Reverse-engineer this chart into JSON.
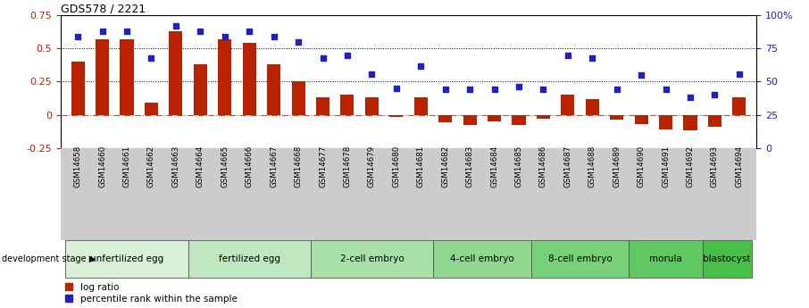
{
  "title": "GDS578 / 2221",
  "samples": [
    "GSM14658",
    "GSM14660",
    "GSM14661",
    "GSM14662",
    "GSM14663",
    "GSM14664",
    "GSM14665",
    "GSM14666",
    "GSM14667",
    "GSM14668",
    "GSM14677",
    "GSM14678",
    "GSM14679",
    "GSM14680",
    "GSM14681",
    "GSM14682",
    "GSM14683",
    "GSM14684",
    "GSM14685",
    "GSM14686",
    "GSM14687",
    "GSM14688",
    "GSM14689",
    "GSM14690",
    "GSM14691",
    "GSM14692",
    "GSM14693",
    "GSM14694"
  ],
  "log_ratio": [
    0.4,
    0.57,
    0.57,
    0.09,
    0.63,
    0.38,
    0.57,
    0.54,
    0.38,
    0.25,
    0.13,
    0.15,
    0.13,
    -0.02,
    0.13,
    -0.06,
    -0.08,
    -0.05,
    -0.08,
    -0.03,
    0.15,
    0.12,
    -0.04,
    -0.07,
    -0.11,
    -0.12,
    -0.09,
    0.13
  ],
  "percentile_rank": [
    0.84,
    0.88,
    0.88,
    0.68,
    0.92,
    0.88,
    0.84,
    0.88,
    0.84,
    0.8,
    0.68,
    0.7,
    0.56,
    0.45,
    0.62,
    0.44,
    0.44,
    0.44,
    0.46,
    0.44,
    0.7,
    0.68,
    0.44,
    0.55,
    0.44,
    0.38,
    0.4,
    0.56
  ],
  "stages": [
    {
      "label": "unfertilized egg",
      "start": 0,
      "end": 5,
      "color": "#d8f0d8"
    },
    {
      "label": "fertilized egg",
      "start": 5,
      "end": 10,
      "color": "#c0e8c0"
    },
    {
      "label": "2-cell embryo",
      "start": 10,
      "end": 15,
      "color": "#a8e0a8"
    },
    {
      "label": "4-cell embryo",
      "start": 15,
      "end": 19,
      "color": "#90d890"
    },
    {
      "label": "8-cell embryo",
      "start": 19,
      "end": 23,
      "color": "#78d078"
    },
    {
      "label": "morula",
      "start": 23,
      "end": 26,
      "color": "#60c860"
    },
    {
      "label": "blastocyst",
      "start": 26,
      "end": 28,
      "color": "#48c048"
    }
  ],
  "bar_color": "#bb2200",
  "dot_color": "#2222bb",
  "bar_ylim": [
    -0.25,
    0.75
  ],
  "pct_ylim": [
    0.0,
    1.0
  ],
  "yticks_left": [
    -0.25,
    0.0,
    0.25,
    0.5,
    0.75
  ],
  "ytick_labels_left": [
    "-0.25",
    "0",
    "0.25",
    "0.5",
    "0.75"
  ],
  "yticks_right": [
    0.0,
    0.25,
    0.5,
    0.75,
    1.0
  ],
  "ytick_labels_right": [
    "0",
    "25",
    "50",
    "75",
    "100%"
  ],
  "hlines": [
    0.25,
    0.5
  ],
  "legend_bar_label": "log ratio",
  "legend_dot_label": "percentile rank within the sample",
  "xlim": [
    -0.7,
    27.7
  ]
}
